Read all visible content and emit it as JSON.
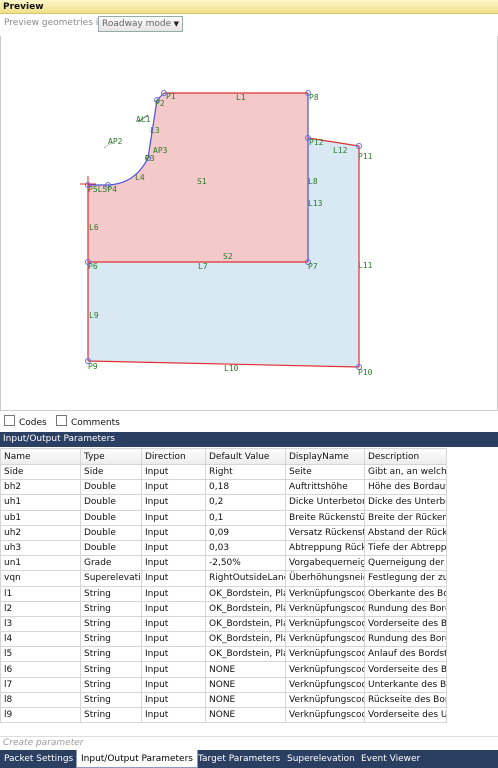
{
  "preview": {
    "title": "Preview",
    "geometry_label": "Preview geometries in",
    "mode_value": "Roadway mode",
    "labels": {
      "AL1": "AL1",
      "AP2": "AP2",
      "AP3": "AP3",
      "P1": "P1",
      "P2": "P2",
      "P3": "P3",
      "P4": "P4",
      "P5L5": "P5L5P4",
      "P6": "P6",
      "P7": "P7",
      "P8": "P8",
      "P9": "P9",
      "P10": "P10",
      "P11": "P11",
      "P12": "P12",
      "L1": "L1",
      "L3": "L3",
      "L4": "L4",
      "L6": "L6",
      "L7": "L7",
      "L8": "L8",
      "L9": "L9",
      "L10": "L10",
      "L11": "L11",
      "L12": "L12",
      "L13": "L13",
      "S1": "S1",
      "S2": "S2"
    }
  },
  "checks": {
    "codes": "Codes",
    "comments": "Comments"
  },
  "io": {
    "title": "Input/Output Parameters",
    "columns": [
      "Name",
      "Type",
      "Direction",
      "Default Value",
      "DisplayName",
      "Description"
    ],
    "rows": [
      [
        "Side",
        "Side",
        "Input",
        "Right",
        "Seite",
        "Gibt an, an welche"
      ],
      [
        "bh2",
        "Double",
        "Input",
        "0,18",
        "Auftrittshöhe",
        "Höhe des Bordauf"
      ],
      [
        "uh1",
        "Double",
        "Input",
        "0,2",
        "Dicke Unterbeton",
        "Dicke des Unterbe"
      ],
      [
        "ub1",
        "Double",
        "Input",
        "0,1",
        "Breite Rückenstü",
        "Breite der Rückens"
      ],
      [
        "uh2",
        "Double",
        "Input",
        "0,09",
        "Versatz Rückenstü",
        "Abstand der Rück"
      ],
      [
        "uh3",
        "Double",
        "Input",
        "0,03",
        "Abtreppung Rücke",
        "Tiefe der Abtrepp"
      ],
      [
        "un1",
        "Grade",
        "Input",
        "-2,50%",
        "Vorgabequerneigu",
        "Querneigung der"
      ],
      [
        "vqn",
        "Superelevation",
        "Input",
        "RightOutsideLane",
        "Überhöhungsneig",
        "Festlegung der zu"
      ],
      [
        "l1",
        "String",
        "Input",
        "OK_Bordstein, Plan",
        "Verknüpfungscod",
        "Oberkante des Bor"
      ],
      [
        "l2",
        "String",
        "Input",
        "OK_Bordstein, Plan",
        "Verknüpfungscod",
        "Rundung des Bord"
      ],
      [
        "l3",
        "String",
        "Input",
        "OK_Bordstein, Plan",
        "Verknüpfungscod",
        "Vorderseite des Bo"
      ],
      [
        "l4",
        "String",
        "Input",
        "OK_Bordstein, Plan",
        "Verknüpfungscod",
        "Rundung des Bord"
      ],
      [
        "l5",
        "String",
        "Input",
        "OK_Bordstein, Plan",
        "Verknüpfungscod",
        "Anlauf des Bordst"
      ],
      [
        "l6",
        "String",
        "Input",
        "NONE",
        "Verknüpfungscod",
        "Vorderseite des Bo"
      ],
      [
        "l7",
        "String",
        "Input",
        "NONE",
        "Verknüpfungscod",
        "Unterkante des Bo"
      ],
      [
        "l8",
        "String",
        "Input",
        "NONE",
        "Verknüpfungscod",
        "Rückseite des Bor"
      ],
      [
        "l9",
        "String",
        "Input",
        "NONE",
        "Verknüpfungscod",
        "Vorderseite des U"
      ]
    ],
    "create_placeholder": "Create parameter"
  },
  "tabs": [
    {
      "label": "Packet Settings",
      "active": false
    },
    {
      "label": "Input/Output Parameters",
      "active": true
    },
    {
      "label": "Target Parameters",
      "active": false
    },
    {
      "label": "Superelevation",
      "active": false
    },
    {
      "label": "Event Viewer",
      "active": false
    }
  ],
  "colors": {
    "red_fill": "#f4c9c9",
    "blue_fill": "#d9e9f4",
    "red_line": "#e03030",
    "blue_line": "#5050d8",
    "label_green": "#2a7a2a",
    "panel_blue": "#2b3f63"
  }
}
